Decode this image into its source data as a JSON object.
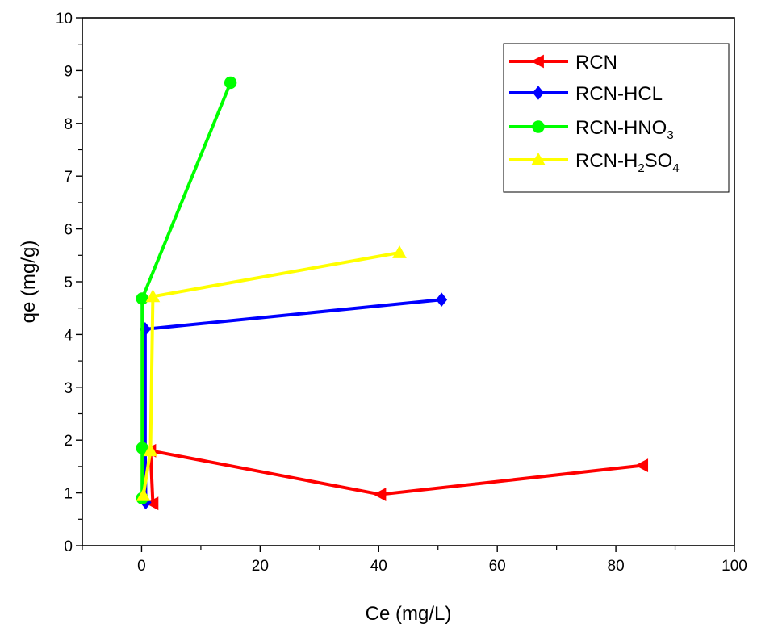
{
  "chart_data": {
    "type": "line",
    "title": "",
    "xlabel": "Ce (mg/L)",
    "ylabel": "qe (mg/g)",
    "xlim": [
      -10,
      100
    ],
    "ylim": [
      0,
      10
    ],
    "x_ticks": [
      0,
      20,
      40,
      60,
      80,
      100
    ],
    "y_ticks": [
      0,
      1,
      2,
      3,
      4,
      5,
      6,
      7,
      8,
      9,
      10
    ],
    "grid": false,
    "legend_position": "top-right",
    "series": [
      {
        "name": "RCN",
        "legend_parts": [
          {
            "t": "RCN",
            "sub": false
          }
        ],
        "color": "#ff0000",
        "marker": "triangle-left",
        "points": [
          [
            1.9,
            0.8
          ],
          [
            1.5,
            1.8
          ],
          [
            40.3,
            0.97
          ],
          [
            84.5,
            1.52
          ]
        ]
      },
      {
        "name": "RCN-HCL",
        "legend_parts": [
          {
            "t": "RCN-HCL",
            "sub": false
          }
        ],
        "color": "#0000ff",
        "marker": "diamond",
        "points": [
          [
            0.7,
            0.82
          ],
          [
            0.6,
            1.8
          ],
          [
            0.6,
            4.1
          ],
          [
            50.6,
            4.66
          ]
        ]
      },
      {
        "name": "RCN-HNO3",
        "legend_parts": [
          {
            "t": "RCN-HNO",
            "sub": false
          },
          {
            "t": "3",
            "sub": true
          }
        ],
        "color": "#00ff00",
        "marker": "circle",
        "points": [
          [
            0.1,
            0.9
          ],
          [
            0.1,
            1.85
          ],
          [
            0.1,
            4.68
          ],
          [
            15.0,
            8.77
          ]
        ]
      },
      {
        "name": "RCN-H2SO4",
        "legend_parts": [
          {
            "t": "RCN-H",
            "sub": false
          },
          {
            "t": "2",
            "sub": true
          },
          {
            "t": "SO",
            "sub": false
          },
          {
            "t": "4",
            "sub": true
          }
        ],
        "color": "#ffff00",
        "marker": "triangle-up",
        "points": [
          [
            0.3,
            0.95
          ],
          [
            1.5,
            1.8
          ],
          [
            1.9,
            4.72
          ],
          [
            43.5,
            5.55
          ]
        ]
      }
    ]
  }
}
